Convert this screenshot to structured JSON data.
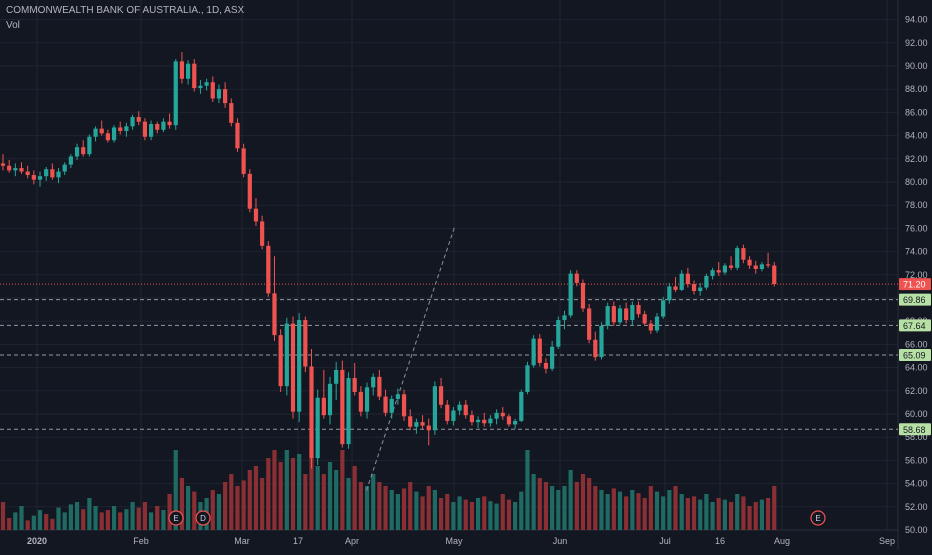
{
  "header": {
    "title": "COMMONWEALTH BANK OF AUSTRALIA., 1D, ASX",
    "vol_label": "Vol"
  },
  "colors": {
    "background": "#131722",
    "grid": "#1f2430",
    "up": "#26a69a",
    "down": "#ef5350",
    "vol_up": "#1f6b63",
    "vol_down": "#8a2f33",
    "axis_text": "#b2b5be",
    "trendline": "#8a8f99",
    "level_line": "#9598a1",
    "price_badge": "#ef5350",
    "level_badge": "#b7e0a4"
  },
  "chart_data": {
    "type": "candlestick",
    "title": "COMMONWEALTH BANK OF AUSTRALIA., 1D, ASX",
    "ylim": [
      50,
      95
    ],
    "yticks": [
      50,
      52,
      54,
      56,
      58,
      60,
      62,
      64,
      66,
      68,
      70,
      72,
      74,
      76,
      78,
      80,
      82,
      84,
      86,
      88,
      90,
      92,
      94
    ],
    "xticks": [
      "2020",
      "Feb",
      "Mar",
      "17",
      "Apr",
      "May",
      "Jun",
      "Jul",
      "16",
      "Aug",
      "Sep"
    ],
    "grid": true,
    "current_price": 71.2,
    "levels": [
      69.86,
      67.64,
      65.09,
      58.68
    ],
    "event_markers": [
      "E",
      "D",
      "E"
    ],
    "trendline": [
      [
        58.9,
        53.4
      ],
      [
        73.3,
        76.3
      ]
    ],
    "candles": [
      [
        81.6,
        82.4,
        81.0,
        81.4
      ],
      [
        81.4,
        81.9,
        80.8,
        81.0
      ],
      [
        81.0,
        81.6,
        80.5,
        81.2
      ],
      [
        81.2,
        81.7,
        80.7,
        80.9
      ],
      [
        80.9,
        81.4,
        80.3,
        80.6
      ],
      [
        80.6,
        81.0,
        79.8,
        80.2
      ],
      [
        80.2,
        80.9,
        79.6,
        80.5
      ],
      [
        80.5,
        81.3,
        80.1,
        81.1
      ],
      [
        81.1,
        81.6,
        80.2,
        80.4
      ],
      [
        80.4,
        81.2,
        79.9,
        80.9
      ],
      [
        80.9,
        81.7,
        80.6,
        81.5
      ],
      [
        81.5,
        82.4,
        81.2,
        82.2
      ],
      [
        82.2,
        83.3,
        81.9,
        83.0
      ],
      [
        83.0,
        83.6,
        82.2,
        82.4
      ],
      [
        82.4,
        84.1,
        82.2,
        83.9
      ],
      [
        83.9,
        84.8,
        83.5,
        84.6
      ],
      [
        84.6,
        85.3,
        84.0,
        84.2
      ],
      [
        84.2,
        84.5,
        83.4,
        83.6
      ],
      [
        83.6,
        84.9,
        83.4,
        84.7
      ],
      [
        84.7,
        85.2,
        84.1,
        84.4
      ],
      [
        84.4,
        85.1,
        83.9,
        84.8
      ],
      [
        84.8,
        85.8,
        84.5,
        85.6
      ],
      [
        85.6,
        86.1,
        84.9,
        85.2
      ],
      [
        85.2,
        85.5,
        83.6,
        83.9
      ],
      [
        83.9,
        85.3,
        83.6,
        85.0
      ],
      [
        85.0,
        85.2,
        84.2,
        84.5
      ],
      [
        84.5,
        85.5,
        84.3,
        85.2
      ],
      [
        85.2,
        85.9,
        84.6,
        84.9
      ],
      [
        84.9,
        90.6,
        84.5,
        90.4
      ],
      [
        90.4,
        91.2,
        88.5,
        88.9
      ],
      [
        88.9,
        90.5,
        88.4,
        90.2
      ],
      [
        90.2,
        90.6,
        87.8,
        88.1
      ],
      [
        88.1,
        88.8,
        87.6,
        88.3
      ],
      [
        88.3,
        88.9,
        87.9,
        88.6
      ],
      [
        88.6,
        89.1,
        86.9,
        87.2
      ],
      [
        87.2,
        88.4,
        86.8,
        88.0
      ],
      [
        88.0,
        88.6,
        86.4,
        86.8
      ],
      [
        86.8,
        87.2,
        84.8,
        85.1
      ],
      [
        85.1,
        85.5,
        82.6,
        82.9
      ],
      [
        82.9,
        83.3,
        80.4,
        80.7
      ],
      [
        80.7,
        81.1,
        77.4,
        77.7
      ],
      [
        77.7,
        78.6,
        76.2,
        76.6
      ],
      [
        76.6,
        77.1,
        74.2,
        74.5
      ],
      [
        74.5,
        74.9,
        70.1,
        70.4
      ],
      [
        70.4,
        73.6,
        66.3,
        66.8
      ],
      [
        66.8,
        67.3,
        61.9,
        62.4
      ],
      [
        62.4,
        68.3,
        61.6,
        67.8
      ],
      [
        67.8,
        68.4,
        59.6,
        60.2
      ],
      [
        60.2,
        68.7,
        59.3,
        68.1
      ],
      [
        68.1,
        68.4,
        63.6,
        64.1
      ],
      [
        64.1,
        65.6,
        55.3,
        56.2
      ],
      [
        56.2,
        62.1,
        55.6,
        61.4
      ],
      [
        61.4,
        63.8,
        59.6,
        59.9
      ],
      [
        59.9,
        63.2,
        59.1,
        62.6
      ],
      [
        62.6,
        64.5,
        61.2,
        63.8
      ],
      [
        63.8,
        64.6,
        57.1,
        57.4
      ],
      [
        57.4,
        63.6,
        57.0,
        63.1
      ],
      [
        63.1,
        64.4,
        61.6,
        61.9
      ],
      [
        61.9,
        62.4,
        59.8,
        60.2
      ],
      [
        60.2,
        62.7,
        59.6,
        62.3
      ],
      [
        62.3,
        63.5,
        61.6,
        63.2
      ],
      [
        63.2,
        63.8,
        61.2,
        61.5
      ],
      [
        61.5,
        62.1,
        59.8,
        60.1
      ],
      [
        60.1,
        61.6,
        59.6,
        61.3
      ],
      [
        61.3,
        62.2,
        60.8,
        61.7
      ],
      [
        61.7,
        62.1,
        59.4,
        59.8
      ],
      [
        59.8,
        60.4,
        58.6,
        58.9
      ],
      [
        58.9,
        59.6,
        58.3,
        59.3
      ],
      [
        59.3,
        59.9,
        58.7,
        59.0
      ],
      [
        59.0,
        59.6,
        57.3,
        58.6
      ],
      [
        58.6,
        62.8,
        58.2,
        62.4
      ],
      [
        62.4,
        63.1,
        60.5,
        60.8
      ],
      [
        60.8,
        61.2,
        59.1,
        59.4
      ],
      [
        59.4,
        60.6,
        59.0,
        60.3
      ],
      [
        60.3,
        61.1,
        59.9,
        60.8
      ],
      [
        60.8,
        61.2,
        59.6,
        59.9
      ],
      [
        59.9,
        60.3,
        59.0,
        59.3
      ],
      [
        59.3,
        59.8,
        58.8,
        59.5
      ],
      [
        59.5,
        60.1,
        58.9,
        59.2
      ],
      [
        59.2,
        59.9,
        58.9,
        59.6
      ],
      [
        59.6,
        60.4,
        59.1,
        60.1
      ],
      [
        60.1,
        60.6,
        59.5,
        59.8
      ],
      [
        59.8,
        60.0,
        58.9,
        59.1
      ],
      [
        59.1,
        59.6,
        58.7,
        59.4
      ],
      [
        59.4,
        62.1,
        59.3,
        61.9
      ],
      [
        61.9,
        64.5,
        61.7,
        64.2
      ],
      [
        64.2,
        66.8,
        64.0,
        66.5
      ],
      [
        66.5,
        66.9,
        64.1,
        64.4
      ],
      [
        64.4,
        64.8,
        63.5,
        63.9
      ],
      [
        63.9,
        66.3,
        63.7,
        65.8
      ],
      [
        65.8,
        68.4,
        65.6,
        68.1
      ],
      [
        68.1,
        68.9,
        67.3,
        68.5
      ],
      [
        68.5,
        72.4,
        68.3,
        72.1
      ],
      [
        72.1,
        72.4,
        71.0,
        71.3
      ],
      [
        71.3,
        71.6,
        68.8,
        69.1
      ],
      [
        69.1,
        69.5,
        66.1,
        66.4
      ],
      [
        66.4,
        67.1,
        64.6,
        64.9
      ],
      [
        64.9,
        67.9,
        64.7,
        67.6
      ],
      [
        67.6,
        69.6,
        67.3,
        69.3
      ],
      [
        69.3,
        69.7,
        67.6,
        67.9
      ],
      [
        67.9,
        69.4,
        67.7,
        69.1
      ],
      [
        69.1,
        69.6,
        67.8,
        68.1
      ],
      [
        68.1,
        69.7,
        67.6,
        69.4
      ],
      [
        69.4,
        69.7,
        68.3,
        68.6
      ],
      [
        68.6,
        68.9,
        67.6,
        67.8
      ],
      [
        67.8,
        68.1,
        66.9,
        67.2
      ],
      [
        67.2,
        68.7,
        67.0,
        68.4
      ],
      [
        68.4,
        70.1,
        68.2,
        69.8
      ],
      [
        69.8,
        71.3,
        69.5,
        71.0
      ],
      [
        71.0,
        71.8,
        70.5,
        70.7
      ],
      [
        70.7,
        72.4,
        70.6,
        72.1
      ],
      [
        72.1,
        72.6,
        70.9,
        71.2
      ],
      [
        71.2,
        71.5,
        70.3,
        70.6
      ],
      [
        70.6,
        71.3,
        70.2,
        70.9
      ],
      [
        70.9,
        72.1,
        70.7,
        71.9
      ],
      [
        71.9,
        72.6,
        71.6,
        72.4
      ],
      [
        72.4,
        73.1,
        71.9,
        72.2
      ],
      [
        72.2,
        73.0,
        72.0,
        72.8
      ],
      [
        72.8,
        73.6,
        72.4,
        72.6
      ],
      [
        72.6,
        74.5,
        72.4,
        74.3
      ],
      [
        74.3,
        74.6,
        73.0,
        73.3
      ],
      [
        73.3,
        73.6,
        72.5,
        72.8
      ],
      [
        72.8,
        73.2,
        72.1,
        72.5
      ],
      [
        72.5,
        73.1,
        72.3,
        72.9
      ],
      [
        72.9,
        73.9,
        72.6,
        72.8
      ],
      [
        72.8,
        73.1,
        71.0,
        71.2
      ]
    ],
    "volume": [
      0.35,
      0.15,
      0.22,
      0.3,
      0.12,
      0.18,
      0.25,
      0.2,
      0.14,
      0.28,
      0.22,
      0.32,
      0.35,
      0.26,
      0.4,
      0.3,
      0.22,
      0.25,
      0.3,
      0.22,
      0.26,
      0.35,
      0.28,
      0.35,
      0.22,
      0.3,
      0.25,
      0.45,
      1.0,
      0.65,
      0.55,
      0.48,
      0.35,
      0.4,
      0.5,
      0.45,
      0.6,
      0.7,
      0.55,
      0.62,
      0.75,
      0.8,
      0.65,
      0.9,
      1.0,
      0.85,
      1.0,
      0.9,
      0.95,
      0.7,
      1.0,
      0.8,
      0.7,
      0.85,
      0.75,
      1.0,
      0.65,
      0.8,
      0.6,
      0.55,
      0.7,
      0.6,
      0.55,
      0.5,
      0.45,
      0.52,
      0.6,
      0.48,
      0.42,
      0.55,
      0.5,
      0.4,
      0.45,
      0.35,
      0.42,
      0.38,
      0.35,
      0.4,
      0.42,
      0.36,
      0.33,
      0.45,
      0.38,
      0.35,
      0.48,
      1.0,
      0.7,
      0.65,
      0.6,
      0.55,
      0.5,
      0.55,
      0.75,
      0.6,
      0.7,
      0.65,
      0.55,
      0.5,
      0.45,
      0.52,
      0.48,
      0.42,
      0.5,
      0.46,
      0.4,
      0.55,
      0.48,
      0.42,
      0.5,
      0.55,
      0.45,
      0.4,
      0.42,
      0.38,
      0.45,
      0.35,
      0.4,
      0.38,
      0.35,
      0.45,
      0.42,
      0.3,
      0.35,
      0.38,
      0.4,
      0.55
    ],
    "volume_colors": [
      0,
      0,
      1,
      1,
      0,
      1,
      1,
      0,
      0,
      1,
      1,
      1,
      1,
      0,
      1,
      1,
      0,
      0,
      1,
      0,
      1,
      1,
      0,
      0,
      1,
      0,
      1,
      0,
      1,
      0,
      1,
      0,
      1,
      1,
      0,
      1,
      0,
      0,
      0,
      0,
      0,
      0,
      0,
      0,
      0,
      0,
      1,
      0,
      1,
      0,
      0,
      1,
      0,
      1,
      1,
      0,
      1,
      0,
      0,
      1,
      1,
      0,
      0,
      1,
      1,
      0,
      0,
      1,
      0,
      0,
      1,
      0,
      0,
      1,
      1,
      0,
      0,
      1,
      0,
      1,
      1,
      0,
      0,
      1,
      1,
      1,
      1,
      0,
      0,
      1,
      1,
      1,
      1,
      0,
      0,
      0,
      0,
      1,
      1,
      0,
      1,
      0,
      1,
      0,
      0,
      0,
      1,
      1,
      1,
      0,
      1,
      0,
      0,
      1,
      1,
      1,
      0,
      1,
      0,
      1,
      0,
      0,
      0,
      1,
      0,
      0
    ]
  }
}
